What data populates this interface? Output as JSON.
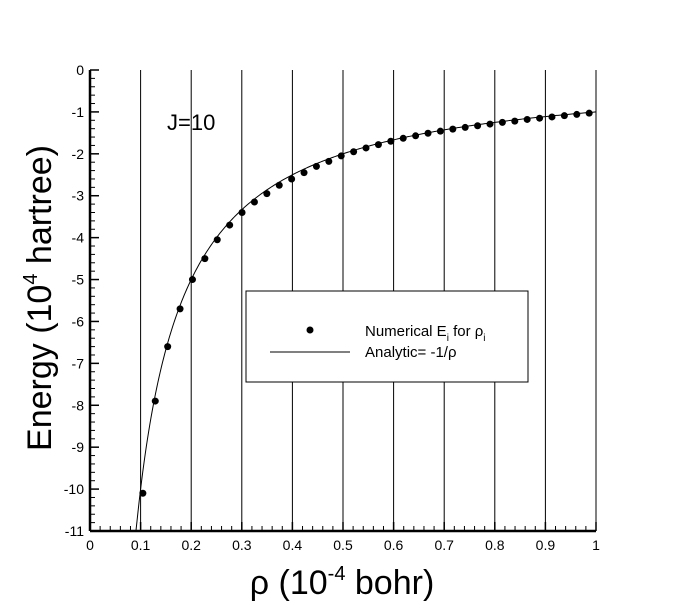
{
  "chart_data": {
    "type": "line",
    "xlabel": "ρ (10",
    "xlabel_sup": "-4",
    "xlabel_tail": " bohr)",
    "ylabel": "Energy (10",
    "ylabel_sup": "4",
    "ylabel_tail": " hartree)",
    "xlim": [
      0,
      1
    ],
    "ylim": [
      -11,
      0
    ],
    "xticks": [
      "0",
      "0.1",
      "0.2",
      "0.3",
      "0.4",
      "0.5",
      "0.6",
      "0.7",
      "0.8",
      "0.9",
      "1"
    ],
    "yticks": [
      "0",
      "-1",
      "-2",
      "-3",
      "-4",
      "-5",
      "-6",
      "-7",
      "-8",
      "-9",
      "-10",
      "-11"
    ],
    "annotation": "J=10",
    "vertical_grid": true,
    "horizontal_grid": false,
    "legend_position": "center-right",
    "series": [
      {
        "name": "Numerical E",
        "name_sub": "i",
        "name_mid": " for ρ",
        "name_sub2": "i",
        "kind": "scatter",
        "x": [
          0.1045,
          0.129,
          0.1535,
          0.178,
          0.2025,
          0.227,
          0.2515,
          0.276,
          0.3005,
          0.325,
          0.3495,
          0.374,
          0.3985,
          0.423,
          0.4475,
          0.472,
          0.4965,
          0.521,
          0.5455,
          0.57,
          0.5945,
          0.619,
          0.6435,
          0.668,
          0.6925,
          0.717,
          0.7415,
          0.766,
          0.7905,
          0.815,
          0.8395,
          0.864,
          0.8885,
          0.913,
          0.9375,
          0.962,
          0.9865
        ],
        "y": [
          -10.1,
          -7.9,
          -6.6,
          -5.7,
          -5.0,
          -4.5,
          -4.05,
          -3.7,
          -3.4,
          -3.15,
          -2.95,
          -2.75,
          -2.6,
          -2.45,
          -2.3,
          -2.18,
          -2.05,
          -1.95,
          -1.86,
          -1.78,
          -1.7,
          -1.63,
          -1.57,
          -1.51,
          -1.46,
          -1.41,
          -1.37,
          -1.33,
          -1.29,
          -1.25,
          -1.22,
          -1.18,
          -1.15,
          -1.12,
          -1.09,
          -1.06,
          -1.03
        ]
      },
      {
        "name": "Analytic= -1/ρ",
        "kind": "line",
        "function": "-1/x",
        "x_start": 0.0885,
        "x_end": 1.0
      }
    ]
  }
}
